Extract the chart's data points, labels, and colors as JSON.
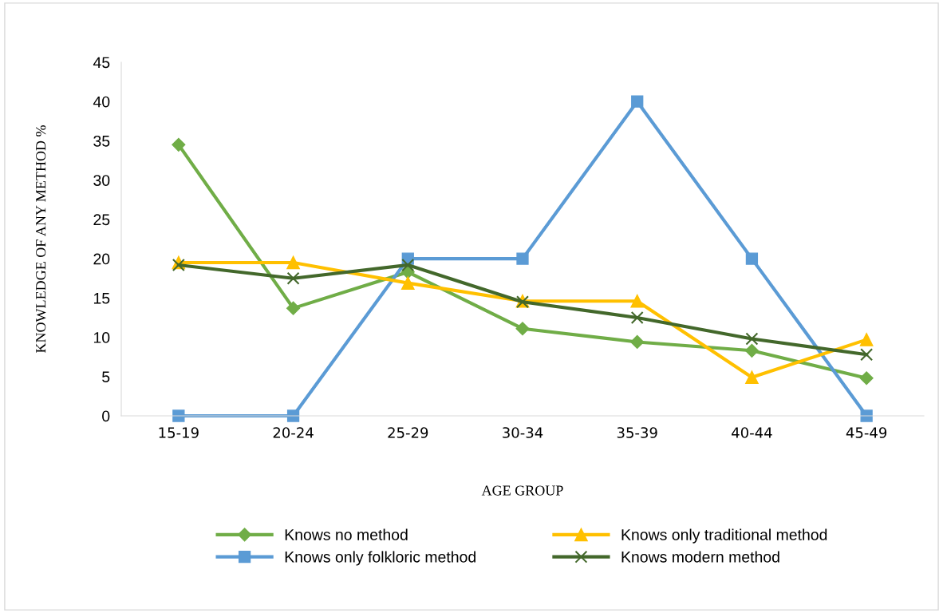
{
  "chart_data": {
    "type": "line",
    "xlabel": "AGE GROUP",
    "ylabel": "KNOWLEDGE OF ANY METHOD %",
    "categories": [
      "15-19",
      "20-24",
      "25-29",
      "30-34",
      "35-39",
      "40-44",
      "45-49"
    ],
    "series": [
      {
        "name": "Knows no method",
        "color": "#70ad47",
        "marker": "diamond",
        "values": [
          34.5,
          13.7,
          18.3,
          11.1,
          9.4,
          8.3,
          4.8
        ]
      },
      {
        "name": "Knows only folkloric method",
        "color": "#5b9bd5",
        "marker": "square",
        "values": [
          0,
          0,
          20,
          20,
          40,
          20,
          0
        ]
      },
      {
        "name": "Knows only traditional method",
        "color": "#ffc000",
        "marker": "triangle",
        "values": [
          19.5,
          19.5,
          16.9,
          14.6,
          14.6,
          4.9,
          9.7
        ]
      },
      {
        "name": "Knows modern method",
        "color": "#43682b",
        "marker": "cross",
        "values": [
          19.2,
          17.5,
          19.2,
          14.5,
          12.5,
          9.8,
          7.8
        ]
      }
    ],
    "ylim": [
      0,
      45
    ],
    "yticks": [
      0,
      5,
      10,
      15,
      20,
      25,
      30,
      35,
      40,
      45
    ],
    "grid": false,
    "legend": "bottom",
    "line_style": "solid"
  }
}
